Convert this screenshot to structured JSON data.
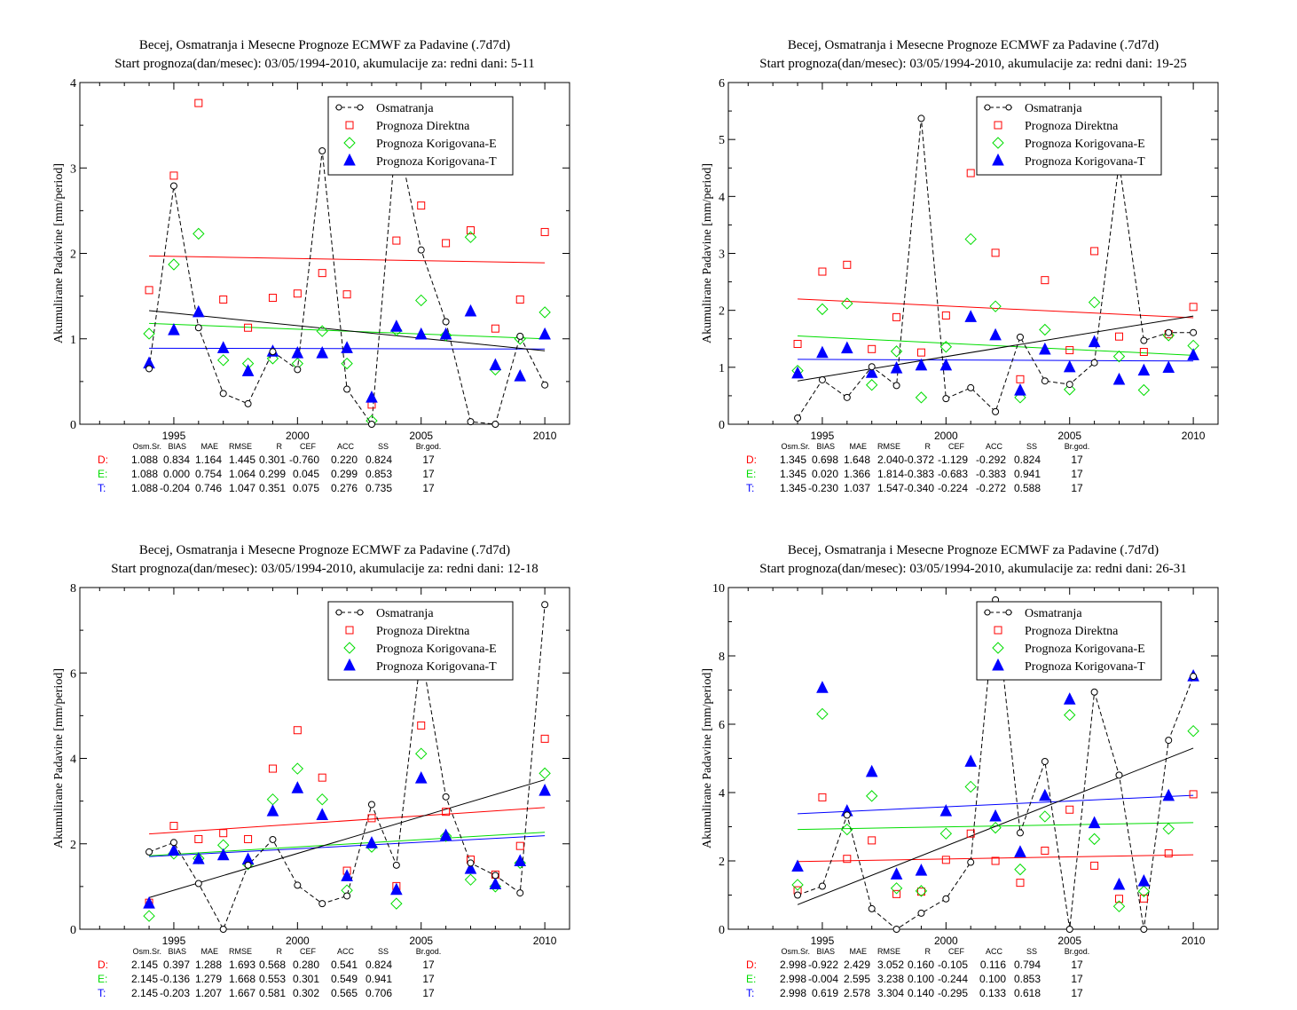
{
  "years": [
    1994,
    1995,
    1996,
    1997,
    1998,
    1999,
    2000,
    2001,
    2002,
    2003,
    2004,
    2005,
    2006,
    2007,
    2008,
    2009,
    2010
  ],
  "colors": {
    "obs": "#000000",
    "direct": "#ff0000",
    "korE": "#00dd00",
    "korT": "#0000ff"
  },
  "legend": [
    "Osmatranja",
    "Prognoza Direktna",
    "Prognoza Korigovana-E",
    "Prognoza Korigovana-T"
  ],
  "y_axis_label": "Akumulirane Padavine [mm/period]",
  "stats_header": [
    "Osm.Sr.",
    "BIAS",
    "MAE",
    "RMSE",
    "R",
    "CEF",
    "ACC",
    "SS",
    "Br.god."
  ],
  "chart_data": [
    {
      "type": "scatter",
      "title": "Becej, Osmatranja i Mesecne Prognoze ECMWF za Padavine (.7d7d)",
      "subtitle": "Start prognoza(dan/mesec): 03/05/1994-2010, akumulacije za: redni dani: 5-11",
      "ylim": [
        0,
        4
      ],
      "yticks": [
        0,
        1,
        2,
        3,
        4
      ],
      "xlim": [
        1991.2,
        2011
      ],
      "xticks": [
        1995,
        2000,
        2005,
        2010
      ],
      "series": [
        {
          "name": "Osmatranja",
          "values": [
            0.65,
            2.79,
            1.13,
            0.36,
            0.24,
            0.85,
            0.64,
            3.2,
            0.41,
            0.0,
            3.42,
            2.04,
            1.2,
            0.03,
            0.0,
            1.03,
            0.46
          ]
        },
        {
          "name": "Prognoza Direktna",
          "values": [
            1.57,
            2.91,
            3.76,
            1.46,
            1.13,
            1.48,
            1.53,
            1.77,
            1.52,
            0.23,
            2.15,
            2.56,
            2.12,
            2.27,
            1.12,
            1.46,
            2.25
          ]
        },
        {
          "name": "Prognoza Korigovana-E",
          "values": [
            1.06,
            1.87,
            2.23,
            0.75,
            0.71,
            0.77,
            0.71,
            1.09,
            0.71,
            0.04,
            1.1,
            1.45,
            1.04,
            2.19,
            0.64,
            1.0,
            1.31
          ]
        },
        {
          "name": "Prognoza Korigovana-T",
          "values": [
            0.71,
            1.1,
            1.31,
            0.89,
            0.62,
            0.85,
            0.83,
            0.83,
            0.89,
            0.31,
            1.14,
            1.05,
            1.05,
            1.32,
            0.69,
            0.56,
            1.05
          ]
        }
      ],
      "trends": {
        "obs": [
          1.33,
          0.86
        ],
        "direct": [
          1.97,
          1.89
        ],
        "korE": [
          1.18,
          1.0
        ],
        "korT": [
          0.89,
          0.88
        ]
      },
      "stats": {
        "D": [
          "1.088",
          "0.834",
          "1.164",
          "1.445",
          "0.301",
          "-0.760",
          "0.220",
          "0.824",
          "17"
        ],
        "E": [
          "1.088",
          "0.000",
          "0.754",
          "1.064",
          "0.299",
          "0.045",
          "0.299",
          "0.853",
          "17"
        ],
        "T": [
          "1.088",
          "-0.204",
          "0.746",
          "1.047",
          "0.351",
          "0.075",
          "0.276",
          "0.735",
          "17"
        ]
      }
    },
    {
      "type": "scatter",
      "title": "Becej, Osmatranja i Mesecne Prognoze ECMWF za Padavine (.7d7d)",
      "subtitle": "Start prognoza(dan/mesec): 03/05/1994-2010, akumulacije za: redni dani: 19-25",
      "ylim": [
        0,
        6
      ],
      "yticks": [
        0,
        1,
        2,
        3,
        4,
        5,
        6
      ],
      "xlim": [
        1991.2,
        2011
      ],
      "xticks": [
        1995,
        2000,
        2005,
        2010
      ],
      "series": [
        {
          "name": "Osmatranja",
          "values": [
            0.11,
            0.78,
            0.47,
            1.01,
            0.68,
            5.37,
            0.45,
            0.64,
            0.22,
            1.53,
            0.76,
            0.7,
            1.08,
            4.6,
            1.47,
            1.61,
            1.61
          ]
        },
        {
          "name": "Prognoza Direktna",
          "values": [
            1.41,
            2.68,
            2.8,
            1.32,
            1.88,
            1.26,
            1.91,
            4.41,
            3.01,
            0.79,
            2.53,
            1.3,
            3.04,
            1.54,
            1.27,
            1.58,
            2.06
          ]
        },
        {
          "name": "Prognoza Korigovana-E",
          "values": [
            0.94,
            2.02,
            2.12,
            0.69,
            1.28,
            0.47,
            1.36,
            3.25,
            2.07,
            0.47,
            1.66,
            0.61,
            2.14,
            1.19,
            0.6,
            1.56,
            1.38
          ]
        },
        {
          "name": "Prognoza Korigovana-T",
          "values": [
            0.89,
            1.25,
            1.33,
            0.9,
            0.98,
            1.03,
            1.03,
            1.88,
            1.56,
            0.59,
            1.31,
            1.0,
            1.44,
            0.78,
            0.94,
            0.99,
            1.21
          ]
        }
      ],
      "trends": {
        "obs": [
          0.76,
          1.9
        ],
        "direct": [
          2.2,
          1.87
        ],
        "korE": [
          1.55,
          1.21
        ],
        "korT": [
          1.14,
          1.11
        ]
      },
      "stats": {
        "D": [
          "1.345",
          "0.698",
          "1.648",
          "2.040",
          "-0.372",
          "-1.129",
          "-0.292",
          "0.824",
          "17"
        ],
        "E": [
          "1.345",
          "0.020",
          "1.366",
          "1.814",
          "-0.383",
          "-0.683",
          "-0.383",
          "0.941",
          "17"
        ],
        "T": [
          "1.345",
          "-0.230",
          "1.037",
          "1.547",
          "-0.340",
          "-0.224",
          "-0.272",
          "0.588",
          "17"
        ]
      }
    },
    {
      "type": "scatter",
      "title": "Becej, Osmatranja i Mesecne Prognoze ECMWF za Padavine (.7d7d)",
      "subtitle": "Start prognoza(dan/mesec): 03/05/1994-2010, akumulacije za: redni dani: 12-18",
      "ylim": [
        0,
        8
      ],
      "yticks": [
        0,
        2,
        4,
        6,
        8
      ],
      "xlim": [
        1991.2,
        2011
      ],
      "xticks": [
        1995,
        2000,
        2005,
        2010
      ],
      "series": [
        {
          "name": "Osmatranja",
          "values": [
            1.81,
            2.03,
            1.07,
            0.0,
            1.5,
            2.1,
            1.03,
            0.6,
            0.78,
            2.92,
            1.5,
            6.5,
            3.1,
            1.55,
            1.26,
            0.85,
            7.6
          ]
        },
        {
          "name": "Prognoza Direktna",
          "values": [
            0.62,
            2.42,
            2.11,
            2.25,
            2.11,
            3.76,
            4.66,
            3.55,
            1.37,
            2.6,
            1.01,
            4.77,
            2.75,
            1.63,
            1.28,
            1.95,
            4.46
          ]
        },
        {
          "name": "Prognoza Korigovana-E",
          "values": [
            0.31,
            1.77,
            1.66,
            1.97,
            1.52,
            3.04,
            3.76,
            3.04,
            0.91,
            1.93,
            0.6,
            4.11,
            2.18,
            1.16,
            1.0,
            1.55,
            3.65
          ]
        },
        {
          "name": "Prognoza Korigovana-T",
          "values": [
            0.6,
            1.84,
            1.64,
            1.73,
            1.63,
            2.76,
            3.3,
            2.67,
            1.24,
            2.01,
            0.92,
            3.53,
            2.19,
            1.41,
            1.05,
            1.59,
            3.24
          ]
        }
      ],
      "trends": {
        "obs": [
          0.74,
          3.5
        ],
        "direct": [
          2.23,
          2.85
        ],
        "korE": [
          1.72,
          2.27
        ],
        "korT": [
          1.7,
          2.19
        ]
      },
      "stats": {
        "D": [
          "2.145",
          "0.397",
          "1.288",
          "1.693",
          "0.568",
          "0.280",
          "0.541",
          "0.824",
          "17"
        ],
        "E": [
          "2.145",
          "-0.136",
          "1.279",
          "1.668",
          "0.553",
          "0.301",
          "0.549",
          "0.941",
          "17"
        ],
        "T": [
          "2.145",
          "-0.203",
          "1.207",
          "1.667",
          "0.581",
          "0.302",
          "0.565",
          "0.706",
          "17"
        ]
      }
    },
    {
      "type": "scatter",
      "title": "Becej, Osmatranja i Mesecne Prognoze ECMWF za Padavine (.7d7d)",
      "subtitle": "Start prognoza(dan/mesec): 03/05/1994-2010, akumulacije za: redni dani: 26-31",
      "ylim": [
        0,
        10
      ],
      "yticks": [
        0,
        2,
        4,
        6,
        8,
        10
      ],
      "xlim": [
        1991.2,
        2011
      ],
      "xticks": [
        1995,
        2000,
        2005,
        2010
      ],
      "series": [
        {
          "name": "Osmatranja",
          "values": [
            1.0,
            1.26,
            3.34,
            0.6,
            0.0,
            0.47,
            0.89,
            1.96,
            9.64,
            2.82,
            4.91,
            0.0,
            6.94,
            4.51,
            0.0,
            5.53,
            7.4
          ]
        },
        {
          "name": "Prognoza Direktna",
          "values": [
            1.14,
            3.86,
            2.06,
            2.6,
            1.03,
            1.1,
            2.03,
            2.8,
            2.0,
            1.36,
            2.3,
            3.5,
            1.86,
            0.89,
            0.9,
            2.22,
            3.95
          ]
        },
        {
          "name": "Prognoza Korigovana-E",
          "values": [
            1.3,
            6.3,
            2.92,
            3.9,
            1.2,
            1.12,
            2.8,
            4.17,
            2.97,
            1.75,
            3.3,
            6.27,
            2.64,
            0.67,
            1.11,
            2.94,
            5.8
          ]
        },
        {
          "name": "Prognoza Korigovana-T",
          "values": [
            1.83,
            7.06,
            3.45,
            4.6,
            1.6,
            1.71,
            3.45,
            4.9,
            3.3,
            2.25,
            3.9,
            6.72,
            3.1,
            1.3,
            1.4,
            3.9,
            7.4
          ]
        }
      ],
      "trends": {
        "obs": [
          0.72,
          5.3
        ],
        "direct": [
          1.98,
          2.18
        ],
        "korE": [
          2.92,
          3.12
        ],
        "korT": [
          3.38,
          3.92
        ]
      },
      "stats": {
        "D": [
          "2.998",
          "-0.922",
          "2.429",
          "3.052",
          "0.160",
          "-0.105",
          "0.116",
          "0.794",
          "17"
        ],
        "E": [
          "2.998",
          "-0.004",
          "2.595",
          "3.238",
          "0.100",
          "-0.244",
          "0.100",
          "0.853",
          "17"
        ],
        "T": [
          "2.998",
          "0.619",
          "2.578",
          "3.304",
          "0.140",
          "-0.295",
          "0.133",
          "0.618",
          "17"
        ]
      }
    }
  ]
}
